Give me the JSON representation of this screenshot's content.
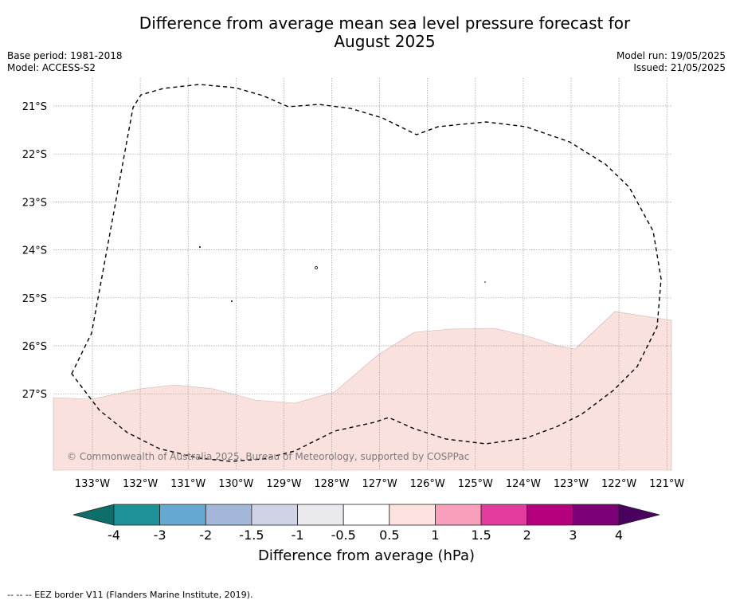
{
  "title_line1": "Difference from average mean sea level pressure forecast for",
  "title_line2": "August 2025",
  "base_period": "Base period: 1981-2018",
  "model": "Model: ACCESS-S2",
  "model_run": "Model run: 19/05/2025",
  "issued": "Issued: 21/05/2025",
  "copyright": "© Commonwealth of Australia 2025, Bureau of Meteorology, supported by COSPPac",
  "footer_note": "--  --  -- EEZ border V11 (Flanders Marine Institute, 2019).",
  "lat_labels": [
    "21°S",
    "22°S",
    "23°S",
    "24°S",
    "25°S",
    "26°S",
    "27°S"
  ],
  "lon_labels": [
    "133°W",
    "132°W",
    "131°W",
    "130°W",
    "129°W",
    "128°W",
    "127°W",
    "126°W",
    "125°W",
    "124°W",
    "123°W",
    "122°W",
    "121°W"
  ],
  "legend": {
    "title": "Difference from average (hPa)",
    "tick_labels": [
      "-4",
      "-3",
      "-2",
      "-1.5",
      "-1",
      "-0.5",
      "0.5",
      "1",
      "1.5",
      "2",
      "3",
      "4"
    ],
    "colors": [
      "#0e6f6a",
      "#1f9299",
      "#66a9d0",
      "#a3b8d8",
      "#d0d2e6",
      "#eaeaee",
      "#ffffff",
      "#fde2df",
      "#f8a0bb",
      "#e33c9e",
      "#b4007d",
      "#7b0076",
      "#4a005f"
    ]
  },
  "colors": {
    "anomaly_fill": "#fbe1dd",
    "gridline": "#999999",
    "eez_border": "#000000"
  }
}
